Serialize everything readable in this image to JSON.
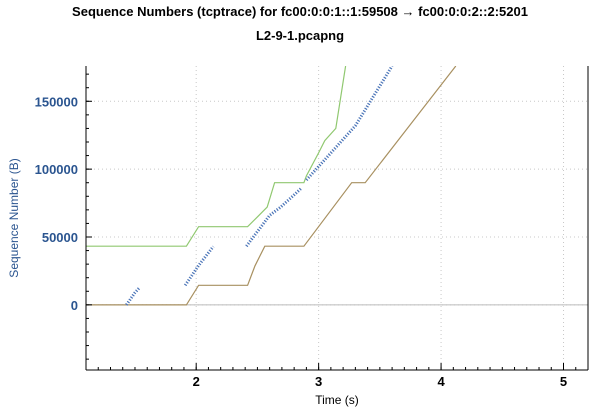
{
  "chart_data": {
    "type": "line",
    "title": "Sequence Numbers (tcptrace) for fc00:0:0:1::1:59508 → fc00:0:0:2::2:5201",
    "subtitle": "L2-9-1.pcapng",
    "xlabel": "Time (s)",
    "ylabel": "Sequence Number (B)",
    "xlim": [
      1.1,
      5.2
    ],
    "ylim": [
      -48000,
      176000
    ],
    "xticks": [
      2,
      3,
      4,
      5
    ],
    "xtick_labels": [
      "2",
      "3",
      "4",
      "5"
    ],
    "yticks": [
      0,
      50000,
      100000,
      150000
    ],
    "ytick_labels": [
      "0",
      "50000",
      "100000",
      "150000"
    ],
    "grid": true,
    "series": [
      {
        "kind": "line",
        "color": "#a89060",
        "points": [
          [
            1.1,
            0
          ],
          [
            1.92,
            0
          ],
          [
            2.02,
            14400
          ],
          [
            2.42,
            14400
          ],
          [
            2.45,
            21600
          ],
          [
            2.48,
            28800
          ],
          [
            2.52,
            36000
          ],
          [
            2.56,
            43200
          ],
          [
            2.88,
            43200
          ],
          [
            3.27,
            90000
          ],
          [
            3.38,
            90000
          ],
          [
            4.12,
            176000
          ]
        ]
      },
      {
        "kind": "line",
        "color": "#90c870",
        "points": [
          [
            1.1,
            43200
          ],
          [
            1.92,
            43200
          ],
          [
            2.02,
            57600
          ],
          [
            2.42,
            57600
          ],
          [
            2.5,
            64800
          ],
          [
            2.58,
            72000
          ],
          [
            2.64,
            90000
          ],
          [
            2.88,
            90000
          ],
          [
            2.9,
            95000
          ],
          [
            3.0,
            112000
          ],
          [
            3.05,
            121000
          ],
          [
            3.14,
            130000
          ],
          [
            3.22,
            176000
          ]
        ]
      },
      {
        "kind": "segments",
        "color": "#4a74b8",
        "points": [
          [
            1.43,
            0
          ],
          [
            1.5,
            9000
          ],
          [
            1.54,
            13000
          ],
          [
            1.91,
            14400
          ],
          [
            2.02,
            29000
          ],
          [
            2.14,
            43000
          ],
          [
            2.41,
            43200
          ],
          [
            2.5,
            54000
          ],
          [
            2.6,
            66000
          ],
          [
            2.69,
            72000
          ],
          [
            2.86,
            86000
          ],
          [
            2.9,
            92000
          ],
          [
            3.1,
            112000
          ],
          [
            3.3,
            132000
          ],
          [
            3.6,
            176000
          ]
        ],
        "breaks": [
          1.55,
          2.2,
          2.88
        ]
      }
    ]
  }
}
